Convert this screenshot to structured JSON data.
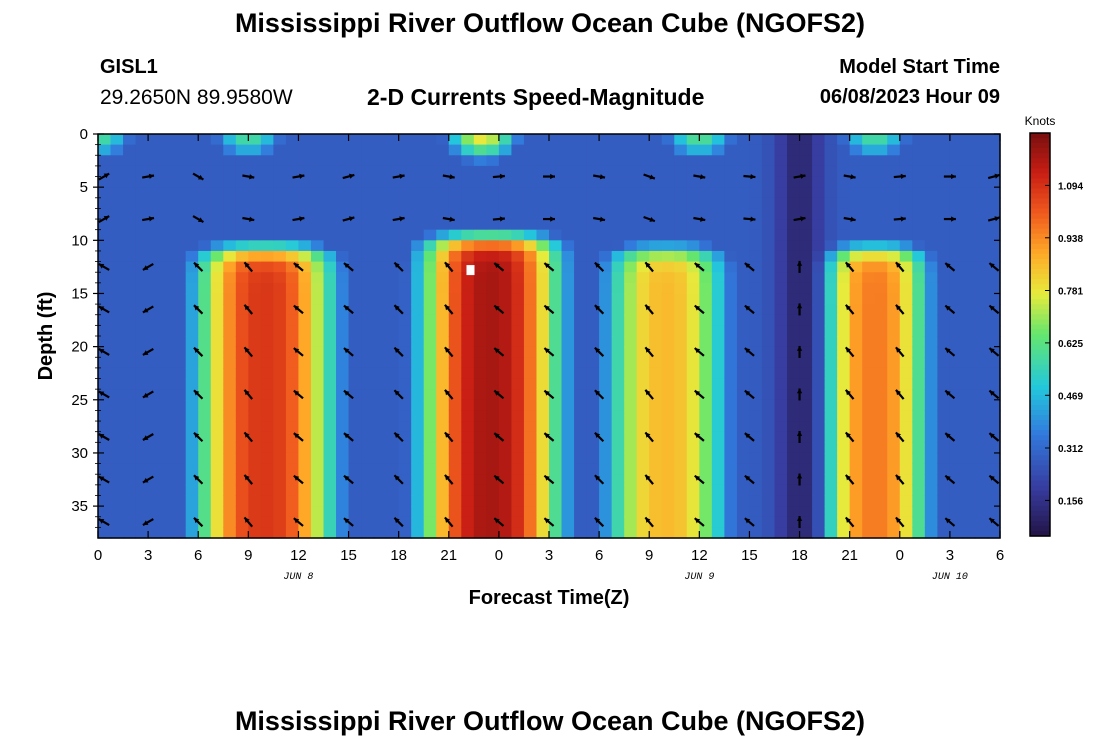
{
  "header": {
    "title": "Mississippi River Outflow Ocean Cube (NGOFS2)",
    "station_id": "GISL1",
    "coords": "29.2650N  89.9580W",
    "subtitle": "2-D Currents Speed-Magnitude",
    "model_start_label": "Model Start Time",
    "model_start_value": "06/08/2023 Hour 09"
  },
  "footer": {
    "title": "Mississippi River Outflow Ocean Cube (NGOFS2)"
  },
  "colors": {
    "arrow": "#000000",
    "marker": "#ffffff"
  },
  "chart_data": {
    "type": "heatmap",
    "title": "2-D Currents Speed-Magnitude",
    "xlabel": "Forecast Time(Z)",
    "ylabel": "Depth (ft)",
    "x_hours_range": [
      0,
      54
    ],
    "ylim": [
      0,
      38
    ],
    "x_ticks": [
      {
        "h": 0,
        "label": "0"
      },
      {
        "h": 3,
        "label": "3"
      },
      {
        "h": 6,
        "label": "6"
      },
      {
        "h": 9,
        "label": "9"
      },
      {
        "h": 12,
        "label": "12"
      },
      {
        "h": 15,
        "label": "15"
      },
      {
        "h": 18,
        "label": "18"
      },
      {
        "h": 21,
        "label": "21"
      },
      {
        "h": 24,
        "label": "0"
      },
      {
        "h": 27,
        "label": "3"
      },
      {
        "h": 30,
        "label": "6"
      },
      {
        "h": 33,
        "label": "9"
      },
      {
        "h": 36,
        "label": "12"
      },
      {
        "h": 39,
        "label": "15"
      },
      {
        "h": 42,
        "label": "18"
      },
      {
        "h": 45,
        "label": "21"
      },
      {
        "h": 48,
        "label": "0"
      },
      {
        "h": 51,
        "label": "3"
      },
      {
        "h": 54,
        "label": "6"
      }
    ],
    "date_labels": [
      {
        "h": 12,
        "label": "JUN 8"
      },
      {
        "h": 36,
        "label": "JUN 9"
      },
      {
        "h": 51,
        "label": "JUN 10"
      }
    ],
    "y_ticks": [
      0,
      5,
      10,
      15,
      20,
      25,
      30,
      35
    ],
    "y_tick_labels": [
      "0",
      "5",
      "10",
      "15",
      "20",
      "25",
      "30",
      "35"
    ],
    "colorbar": {
      "units": "Knots",
      "min": 0.05,
      "max": 1.25,
      "ticks": [
        0.156,
        0.312,
        0.469,
        0.625,
        0.781,
        0.938,
        1.094
      ],
      "tick_labels": [
        "0.156",
        "0.312",
        "0.469",
        "0.625",
        "0.781",
        "0.938",
        "1.094"
      ]
    },
    "speed_model": {
      "description": "Speed (knots) by forecast hour and depth. Lower layer (depth >= 10 ft) has four ebb/flood pulses; surface layer is weaker.",
      "lower_pulses": [
        {
          "center_h": 10,
          "half_width_h": 4.5,
          "peak": 1.08,
          "min_depth": 10.5
        },
        {
          "center_h": 23.5,
          "half_width_h": 4.5,
          "peak": 1.18,
          "min_depth": 9.5
        },
        {
          "center_h": 34,
          "half_width_h": 4.0,
          "peak": 0.86,
          "min_depth": 10.5
        },
        {
          "center_h": 46.5,
          "half_width_h": 3.5,
          "peak": 0.96,
          "min_depth": 10.5
        }
      ],
      "surface_pulses": [
        {
          "center_h": 0,
          "peak": 0.6
        },
        {
          "center_h": 9,
          "peak": 0.6
        },
        {
          "center_h": 23,
          "peak": 0.8
        },
        {
          "center_h": 36,
          "peak": 0.62
        },
        {
          "center_h": 46.5,
          "peak": 0.6
        }
      ],
      "background": 0.28,
      "low_zone": {
        "center_h": 42,
        "value": 0.12
      }
    },
    "arrows": {
      "columns_h": [
        0,
        3,
        6,
        9,
        12,
        15,
        18,
        21,
        24,
        27,
        30,
        33,
        36,
        39,
        42,
        45,
        48,
        51,
        54
      ],
      "depths_ft": [
        4,
        8,
        12.5,
        16.5,
        20.5,
        24.5,
        28.5,
        32.5,
        36.5
      ],
      "lower_angles_deg": [
        150,
        210,
        135,
        130,
        140,
        140,
        135,
        130,
        140,
        140,
        135,
        130,
        140,
        140,
        90,
        130,
        130,
        140,
        140
      ],
      "upper_angles_deg": [
        30,
        10,
        330,
        350,
        10,
        15,
        10,
        350,
        5,
        0,
        350,
        340,
        350,
        355,
        10,
        350,
        5,
        0,
        15
      ]
    },
    "marker": {
      "h": 22.3,
      "depth_ft": 12.8
    }
  }
}
